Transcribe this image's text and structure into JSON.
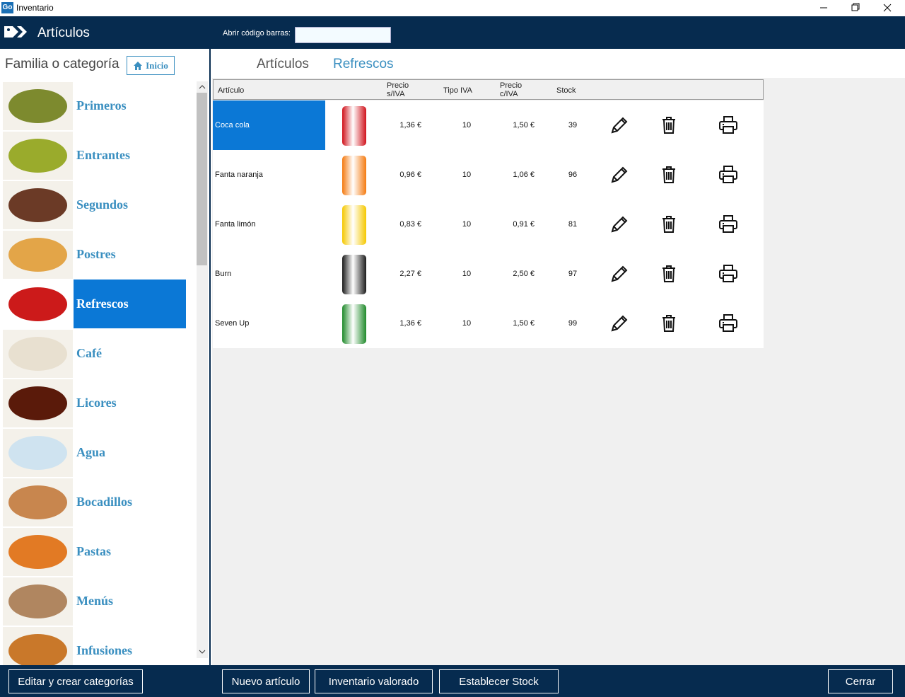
{
  "window": {
    "icon": "Go",
    "title": "Inventario"
  },
  "header": {
    "title": "Artículos",
    "barcode_label": "Abrir código barras:"
  },
  "sidebar": {
    "title": "Familia o categoría",
    "home_button": "Inicio",
    "categories": [
      "Primeros",
      "Entrantes",
      "Segundos",
      "Postres",
      "Refrescos",
      "Café",
      "Licores",
      "Agua",
      "Bocadillos",
      "Pastas",
      "Menús",
      "Infusiones"
    ],
    "selected": 4
  },
  "breadcrumb": [
    "Artículos",
    "Refrescos"
  ],
  "table": {
    "header": {
      "name": "Artículo",
      "price": [
        "Precio",
        "s/IVA"
      ],
      "vat": "Tipo IVA",
      "price_vat": [
        "Precio",
        "c/IVA"
      ],
      "stock": "Stock"
    },
    "rows": [
      [
        "Coca cola",
        "1,36 €",
        10,
        "1,50 €",
        39
      ],
      [
        "Fanta naranja",
        "0,96 €",
        10,
        "1,06 €",
        96
      ],
      [
        "Fanta limón",
        "0,83 €",
        10,
        "0,91 €",
        81
      ],
      [
        "Burn",
        "2,27 €",
        10,
        "2,50 €",
        97
      ],
      [
        "Seven Up",
        "1,36 €",
        10,
        "1,50 €",
        99
      ]
    ],
    "selected_row": 0
  },
  "footer": {
    "left": "Editar y crear categorías",
    "buttons": [
      "Nuevo artículo",
      "Inventario valorado",
      "Establecer Stock"
    ],
    "close": "Cerrar"
  }
}
